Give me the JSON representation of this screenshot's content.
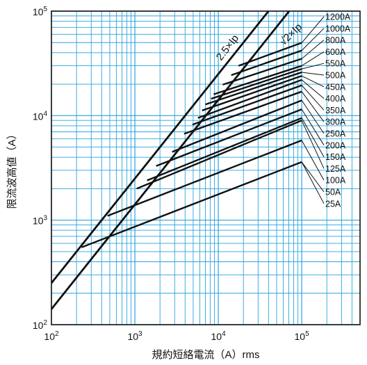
{
  "chart_data": {
    "type": "line",
    "xlabel": "規約短絡電流（A）rms",
    "ylabel": "限流波高値（A）",
    "xscale": "log",
    "yscale": "log",
    "xlim": [
      100,
      500000
    ],
    "ylim": [
      100,
      100000
    ],
    "grid": true,
    "grid_color": "#2aa3dc",
    "line_color": "#111111",
    "x_ticks": [
      {
        "base": "10",
        "exp": "2"
      },
      {
        "base": "10",
        "exp": "3"
      },
      {
        "base": "10",
        "exp": "4"
      },
      {
        "base": "10",
        "exp": "5"
      }
    ],
    "y_ticks": [
      {
        "base": "10",
        "exp": "2"
      },
      {
        "base": "10",
        "exp": "3"
      },
      {
        "base": "10",
        "exp": "4"
      },
      {
        "base": "10",
        "exp": "5"
      }
    ],
    "reference_lines": [
      {
        "name": "2.5×Ip",
        "x": [
          100,
          40000
        ],
        "y": [
          250,
          100000
        ]
      },
      {
        "name": "√2×Ip",
        "x": [
          100,
          70700
        ],
        "y": [
          141,
          100000
        ]
      }
    ],
    "series": [
      {
        "name": "1200A",
        "x": [
          17500,
          100000
        ],
        "y": [
          30000,
          49800
        ]
      },
      {
        "name": "1000A",
        "x": [
          14300,
          100000
        ],
        "y": [
          24400,
          42000
        ]
      },
      {
        "name": "800A",
        "x": [
          11300,
          100000
        ],
        "y": [
          19800,
          35000
        ]
      },
      {
        "name": "600A",
        "x": [
          8800,
          100000
        ],
        "y": [
          16000,
          30000
        ]
      },
      {
        "name": "550A",
        "x": [
          8200,
          100000
        ],
        "y": [
          14500,
          28000
        ]
      },
      {
        "name": "500A",
        "x": [
          7000,
          100000
        ],
        "y": [
          12800,
          26000
        ]
      },
      {
        "name": "450A",
        "x": [
          6400,
          100000
        ],
        "y": [
          11200,
          24000
        ]
      },
      {
        "name": "400A",
        "x": [
          5700,
          100000
        ],
        "y": [
          9500,
          22000
        ]
      },
      {
        "name": "350A",
        "x": [
          4900,
          100000
        ],
        "y": [
          8200,
          19500
        ]
      },
      {
        "name": "300A",
        "x": [
          3900,
          100000
        ],
        "y": [
          6700,
          17000
        ]
      },
      {
        "name": "250A",
        "x": [
          2800,
          100000
        ],
        "y": [
          4500,
          14000
        ]
      },
      {
        "name": "200A",
        "x": [
          1800,
          100000
        ],
        "y": [
          3300,
          11500
        ]
      },
      {
        "name": "150A",
        "x": [
          1400,
          100000
        ],
        "y": [
          2400,
          9500
        ]
      },
      {
        "name": "125A",
        "x": [
          1050,
          100000
        ],
        "y": [
          2000,
          9000
        ]
      },
      {
        "name": "100A",
        "x": [
          470,
          100000
        ],
        "y": [
          1100,
          5800
        ]
      },
      {
        "name": "50A",
        "x": [
          230,
          100000
        ],
        "y": [
          550,
          3600
        ]
      },
      {
        "name": "25A",
        "x": [],
        "y": []
      }
    ]
  }
}
